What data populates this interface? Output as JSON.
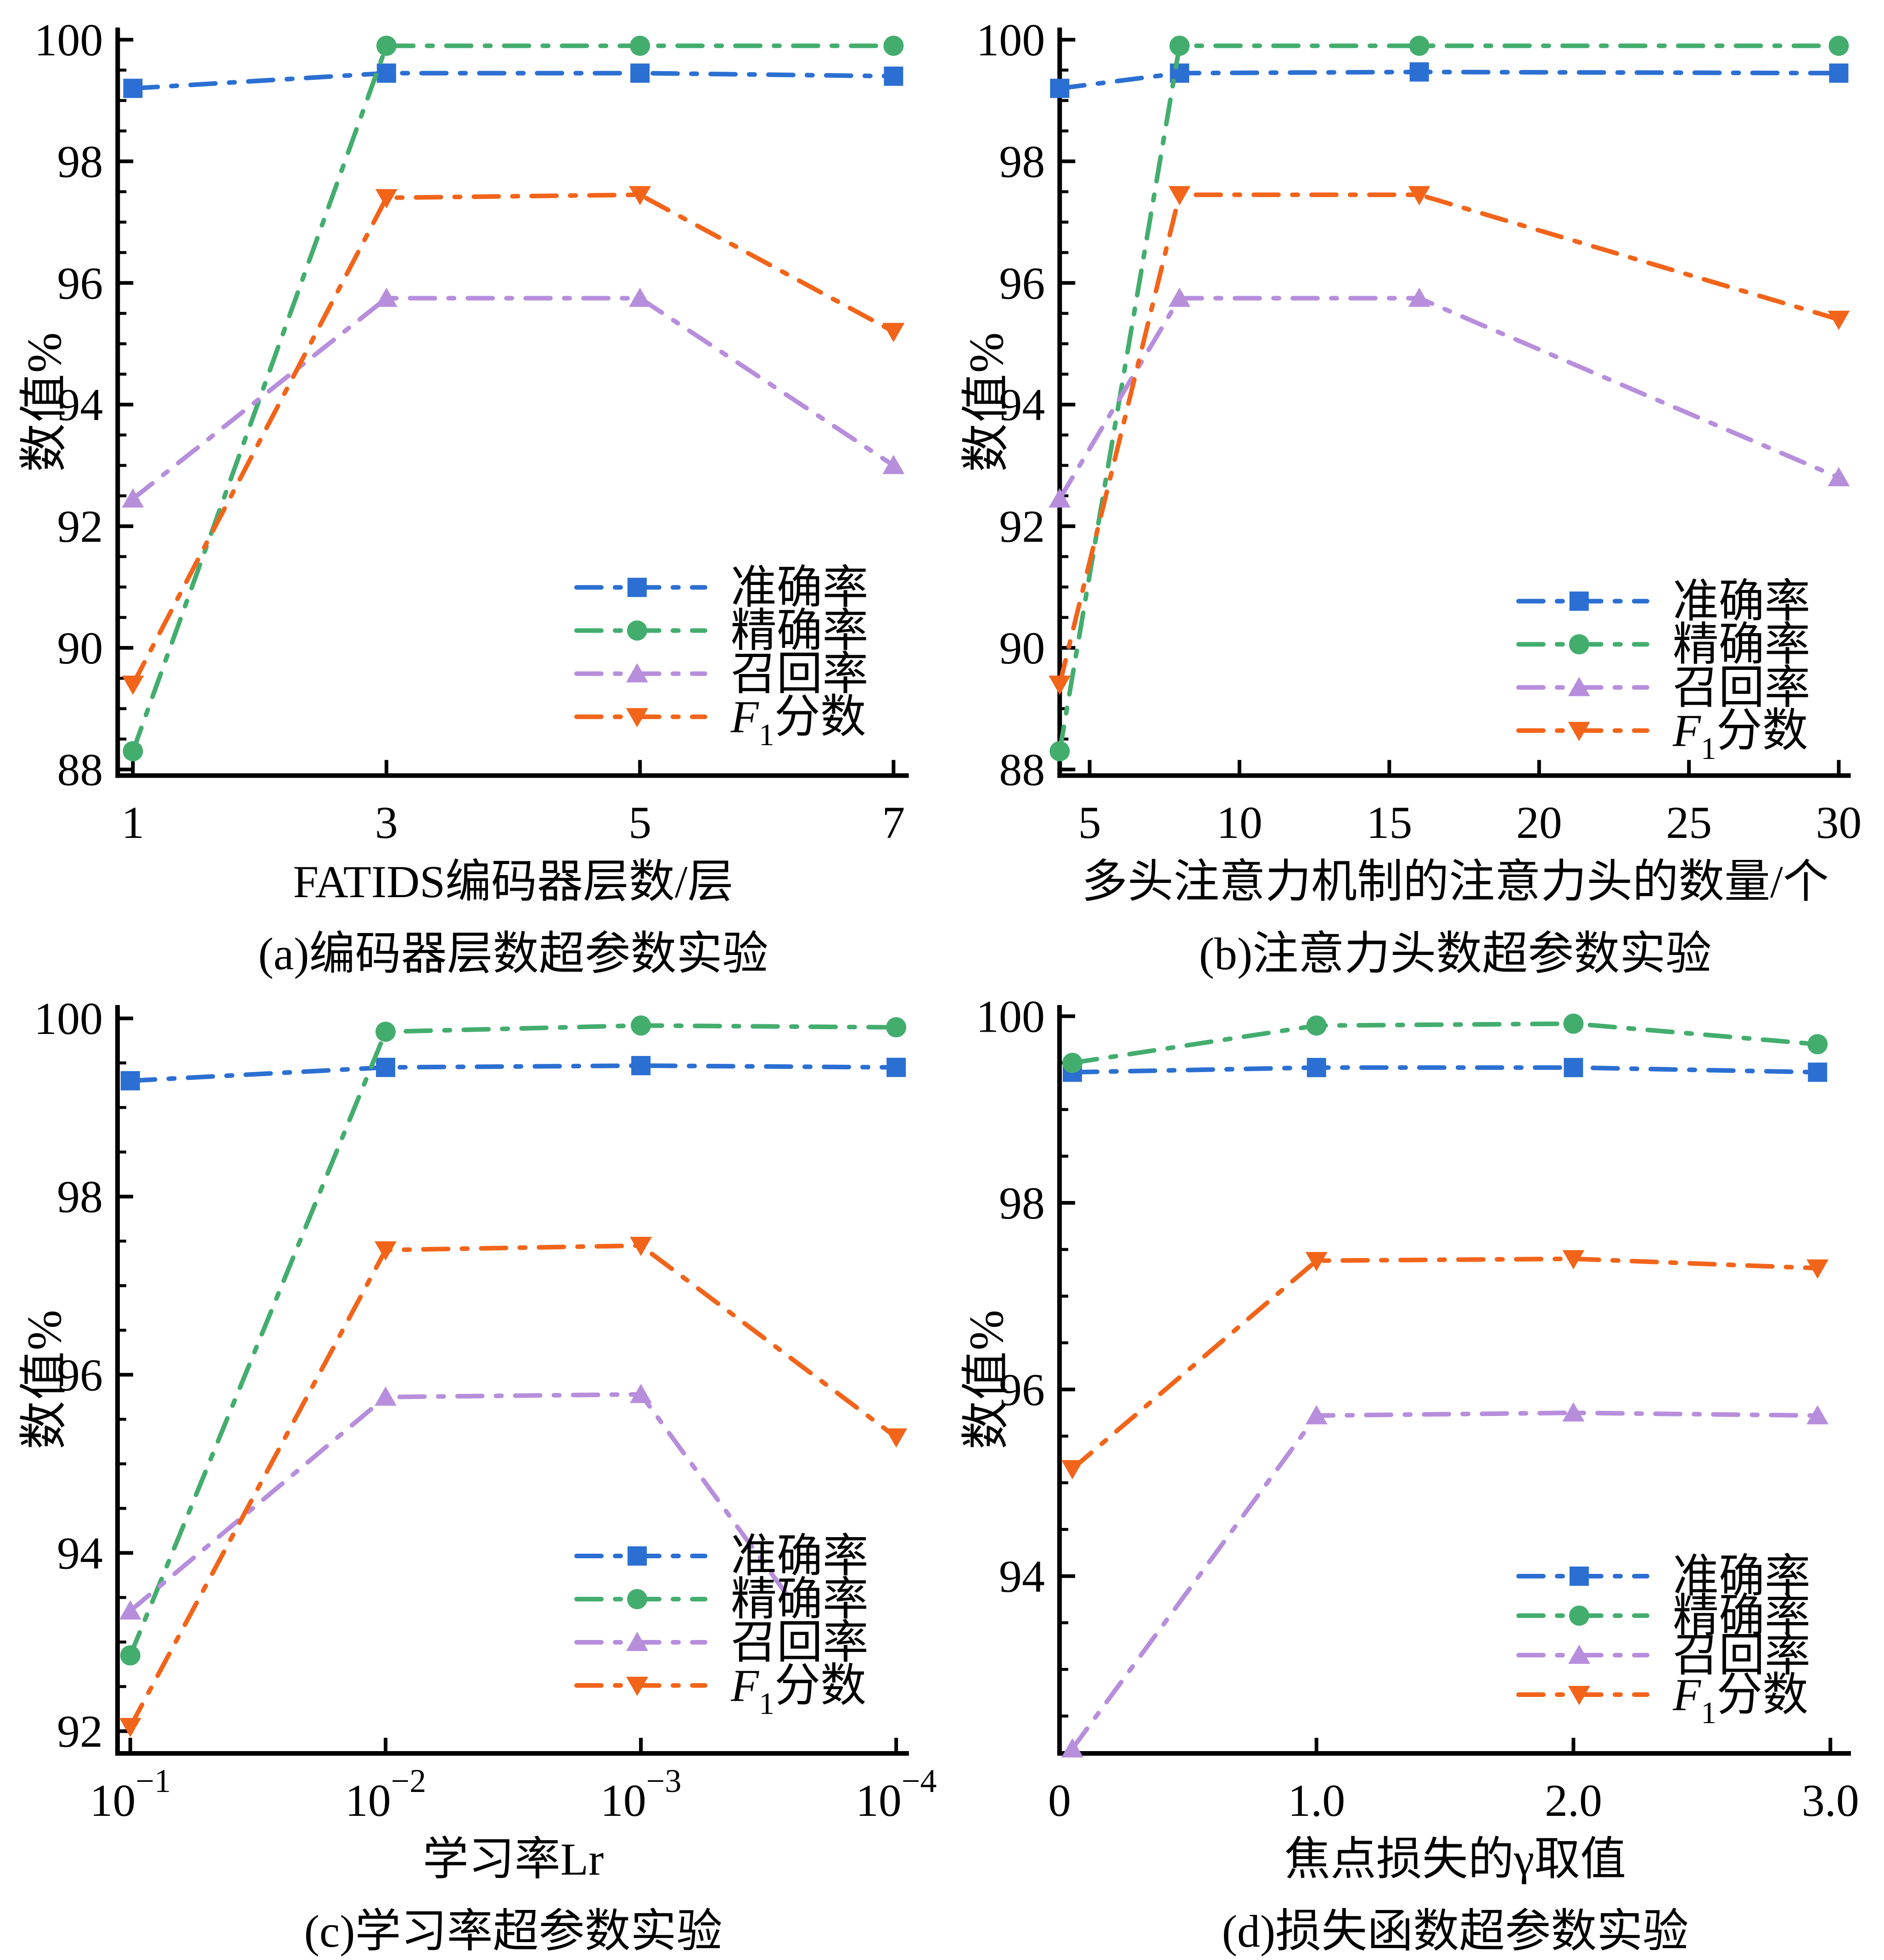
{
  "page": {
    "background": "#ffffff",
    "axis_color": "#000000"
  },
  "legend_labels": [
    "准确率",
    "精确率",
    "召回率",
    "F1分数"
  ],
  "series_colors": {
    "accuracy": "#2b6fd2",
    "precision": "#43ad6e",
    "recall": "#b78edc",
    "f1": "#f2641a"
  },
  "chart_data": {
    "type": "line",
    "charts": [
      {
        "key": "a",
        "ylabel": "数值%",
        "xlabel": "FATIDS编码器层数/层",
        "caption": "(a)编码器层数超参数实验",
        "ylim": [
          87.9,
          100.2
        ],
        "yticks": [
          88,
          90,
          92,
          94,
          96,
          98,
          100
        ],
        "yminor": 0.5,
        "xlim": [
          0.88,
          7.12
        ],
        "xticks": [
          {
            "v": 1,
            "label": "1"
          },
          {
            "v": 3,
            "label": "3"
          },
          {
            "v": 5,
            "label": "5"
          },
          {
            "v": 7,
            "label": "7"
          }
        ],
        "legend": {
          "x": 628,
          "rows": [
            640,
            687,
            734,
            781
          ]
        },
        "series": [
          {
            "name": "准确率",
            "color": "#2b6fd2",
            "marker": "square",
            "x": [
              1,
              3,
              5,
              7
            ],
            "y": [
              99.2,
              99.45,
              99.45,
              99.4
            ]
          },
          {
            "name": "精确率",
            "color": "#43ad6e",
            "marker": "circle",
            "x": [
              1,
              3,
              5,
              7
            ],
            "y": [
              88.3,
              99.9,
              99.9,
              99.9
            ]
          },
          {
            "name": "召回率",
            "color": "#b78edc",
            "marker": "triangle-up",
            "x": [
              1,
              3,
              5,
              7
            ],
            "y": [
              92.45,
              95.75,
              95.75,
              93.0
            ]
          },
          {
            "name": "F1分数",
            "f1": true,
            "color": "#f2641a",
            "marker": "triangle-down",
            "x": [
              1,
              3,
              5,
              7
            ],
            "y": [
              89.4,
              97.4,
              97.45,
              95.2
            ]
          }
        ]
      },
      {
        "key": "b",
        "ylabel": "数值%",
        "xlabel": "多头注意力机制的注意力头的数量/个",
        "caption": "(b)注意力头数超参数实验",
        "ylim": [
          87.9,
          100.2
        ],
        "yticks": [
          88,
          90,
          92,
          94,
          96,
          98,
          100
        ],
        "yminor": 0.5,
        "xlim": [
          4,
          30.4
        ],
        "xticks": [
          {
            "v": 5,
            "label": "5"
          },
          {
            "v": 10,
            "label": "10"
          },
          {
            "v": 15,
            "label": "15"
          },
          {
            "v": 20,
            "label": "20"
          },
          {
            "v": 25,
            "label": "25"
          },
          {
            "v": 30,
            "label": "30"
          }
        ],
        "legend": {
          "x": 628,
          "rows": [
            655,
            702,
            749,
            796
          ]
        },
        "series": [
          {
            "name": "准确率",
            "color": "#2b6fd2",
            "marker": "square",
            "x": [
              4,
              8,
              16,
              30
            ],
            "y": [
              99.2,
              99.45,
              99.47,
              99.45
            ]
          },
          {
            "name": "精确率",
            "color": "#43ad6e",
            "marker": "circle",
            "x": [
              4,
              8,
              16,
              30
            ],
            "y": [
              88.3,
              99.9,
              99.9,
              99.9
            ]
          },
          {
            "name": "召回率",
            "color": "#b78edc",
            "marker": "triangle-up",
            "x": [
              4,
              8,
              16,
              30
            ],
            "y": [
              92.45,
              95.75,
              95.75,
              92.8
            ]
          },
          {
            "name": "F1分数",
            "f1": true,
            "color": "#f2641a",
            "marker": "triangle-down",
            "x": [
              4,
              8,
              16,
              30
            ],
            "y": [
              89.4,
              97.45,
              97.45,
              95.4
            ]
          }
        ]
      },
      {
        "key": "c",
        "ylabel": "数值%",
        "xlabel": "学习率Lr",
        "caption": "(c)学习率超参数实验",
        "ylim": [
          91.75,
          100.15
        ],
        "yticks": [
          92,
          94,
          96,
          98,
          100
        ],
        "yminor": 0.5,
        "xlim": [
          -0.05,
          3.05
        ],
        "xticks": [
          {
            "v": 0,
            "label": "10^−1"
          },
          {
            "v": 1,
            "label": "10^−2"
          },
          {
            "v": 2,
            "label": "10^−3"
          },
          {
            "v": 3,
            "label": "10^−4"
          }
        ],
        "legend": {
          "x": 628,
          "rows": [
            630,
            677,
            724,
            771
          ]
        },
        "series": [
          {
            "name": "准确率",
            "color": "#2b6fd2",
            "marker": "square",
            "x": [
              0,
              1,
              2,
              3
            ],
            "y": [
              99.3,
              99.45,
              99.47,
              99.45
            ]
          },
          {
            "name": "精确率",
            "color": "#43ad6e",
            "marker": "circle",
            "x": [
              0,
              1,
              2,
              3
            ],
            "y": [
              92.85,
              99.85,
              99.92,
              99.9
            ]
          },
          {
            "name": "召回率",
            "color": "#b78edc",
            "marker": "triangle-up",
            "x": [
              0,
              1,
              2
            ],
            "y": [
              93.35,
              95.75,
              95.78
            ],
            "trunc": {
              "x": 2.58,
              "y": 93.5
            }
          },
          {
            "name": "F1分数",
            "f1": true,
            "color": "#f2641a",
            "marker": "triangle-down",
            "x": [
              0,
              1,
              2,
              3
            ],
            "y": [
              92.05,
              97.4,
              97.45,
              95.3
            ]
          }
        ]
      },
      {
        "key": "d",
        "ylabel": "数值%",
        "xlabel": "焦点损失的γ取值",
        "caption": "(d)损失函数超参数实验",
        "ylim": [
          92.1,
          100.12
        ],
        "yticks": [
          94,
          96,
          98,
          100
        ],
        "yminor": 0.5,
        "xlim": [
          0,
          3.08
        ],
        "xticks": [
          {
            "v": 0,
            "label": "0"
          },
          {
            "v": 1,
            "label": "1.0"
          },
          {
            "v": 2,
            "label": "2.0"
          },
          {
            "v": 3,
            "label": "3.0"
          }
        ],
        "legend": {
          "x": 628,
          "rows": [
            652,
            695,
            738,
            781
          ]
        },
        "series": [
          {
            "name": "准确率",
            "color": "#2b6fd2",
            "marker": "square",
            "x": [
              0.05,
              1,
              2,
              2.95
            ],
            "y": [
              99.4,
              99.45,
              99.45,
              99.4
            ]
          },
          {
            "name": "精确率",
            "color": "#43ad6e",
            "marker": "circle",
            "x": [
              0.05,
              1,
              2,
              2.95
            ],
            "y": [
              99.5,
              99.9,
              99.92,
              99.7
            ]
          },
          {
            "name": "召回率",
            "color": "#b78edc",
            "marker": "triangle-up",
            "x": [
              0.05,
              1,
              2,
              2.95
            ],
            "y": [
              92.15,
              95.72,
              95.75,
              95.72
            ]
          },
          {
            "name": "F1分数",
            "f1": true,
            "color": "#f2641a",
            "marker": "triangle-down",
            "x": [
              0.05,
              1,
              2,
              2.95
            ],
            "y": [
              95.15,
              97.38,
              97.4,
              97.3
            ]
          }
        ]
      }
    ]
  }
}
